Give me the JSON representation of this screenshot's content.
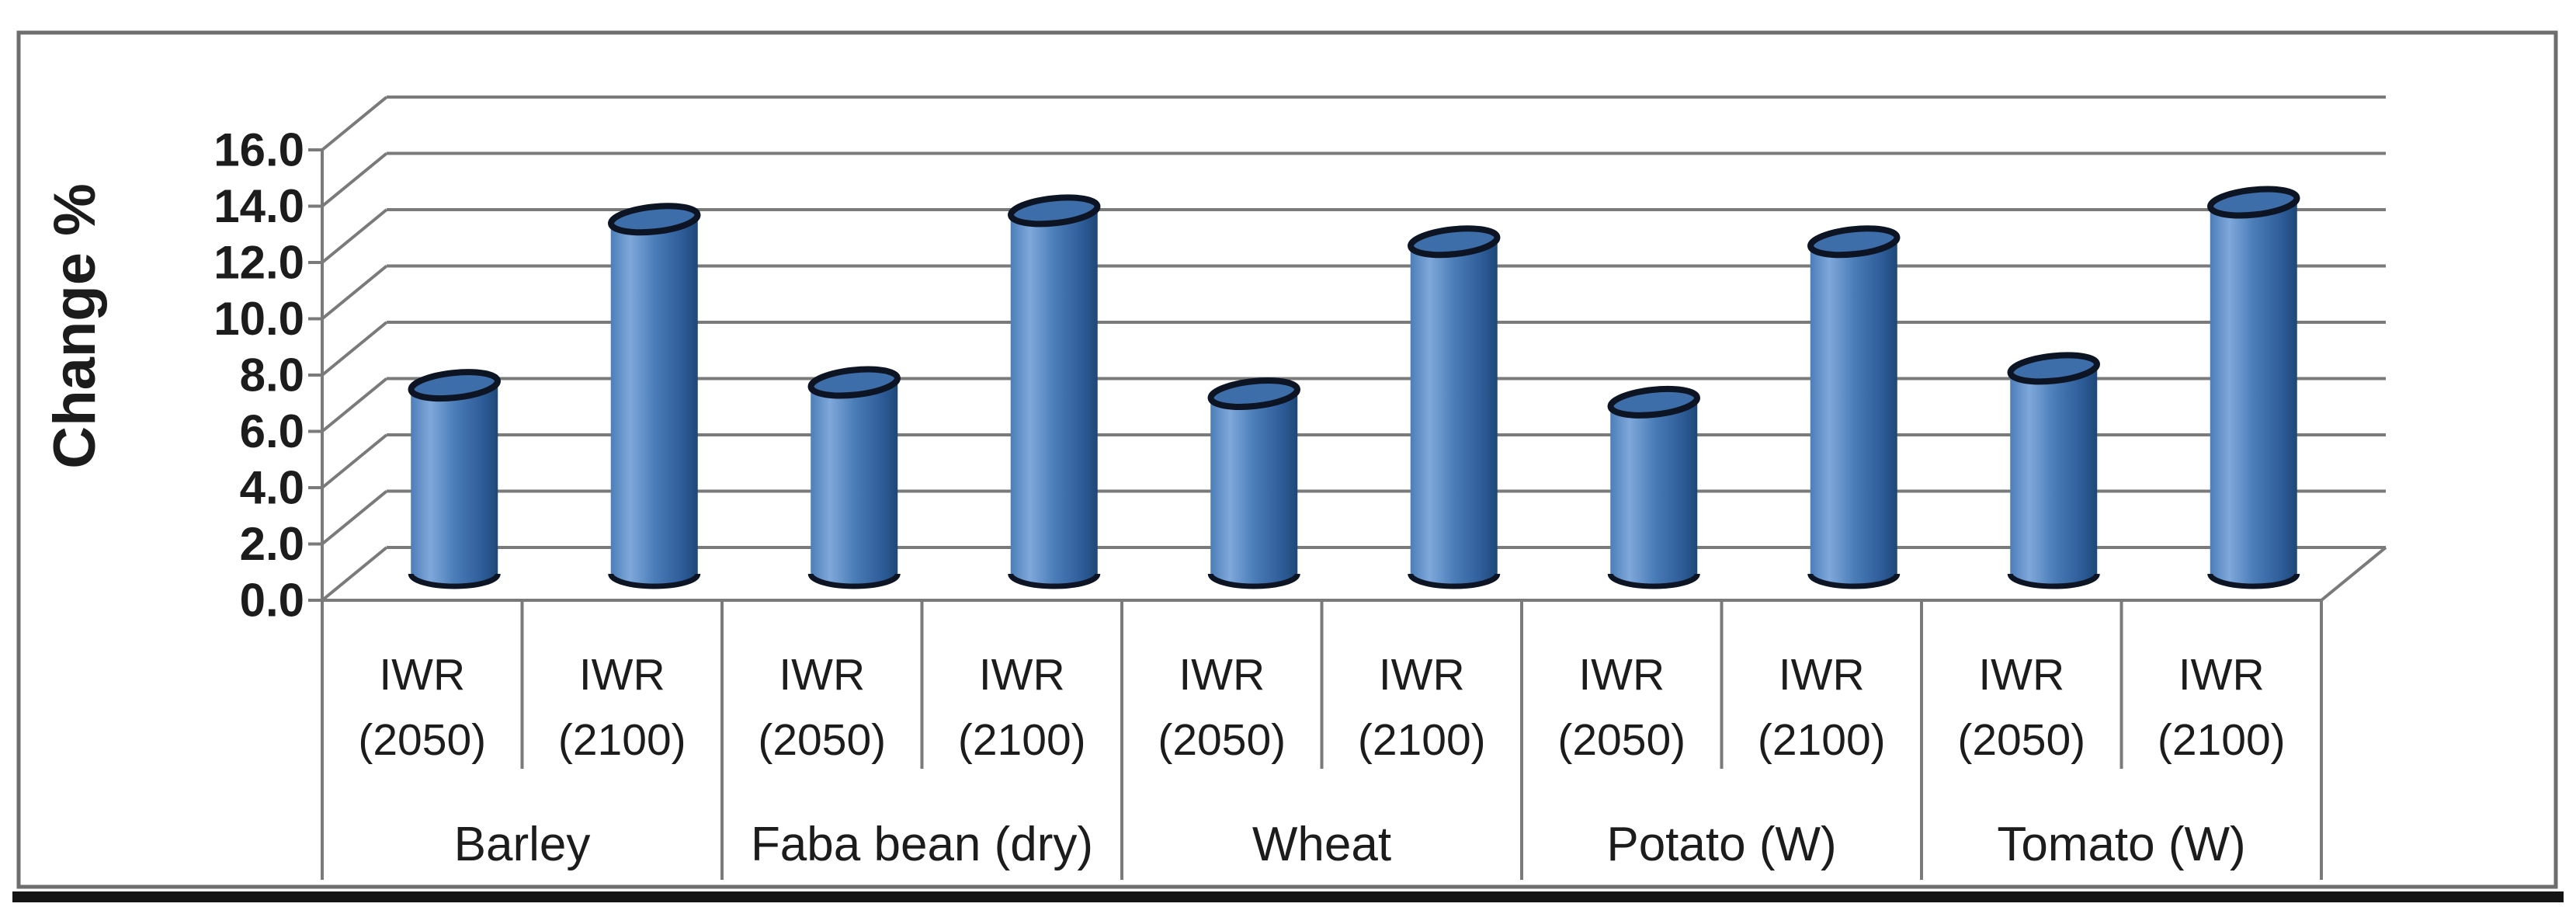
{
  "figure": {
    "background": "#ffffff",
    "border_color": "#6e6e6e",
    "bottom_bar_color": "#141414"
  },
  "chart_data": {
    "type": "bar",
    "style": "3d-cylinder",
    "title": "",
    "ylabel": "Change %",
    "xlabel": "",
    "ylim": [
      0,
      16
    ],
    "ytick_step": 2,
    "ytick_labels": [
      "0.0",
      "2.0",
      "4.0",
      "6.0",
      "8.0",
      "10.0",
      "12.0",
      "14.0",
      "16.0"
    ],
    "grid": true,
    "legend_position": "none",
    "categories": [
      "Barley",
      "Faba bean (dry)",
      "Wheat",
      "Potato (W)",
      "Tomato (W)"
    ],
    "series": [
      {
        "name": "IWR (2050)",
        "values": [
          6.7,
          6.8,
          6.4,
          6.1,
          7.3
        ]
      },
      {
        "name": "IWR (2100)",
        "values": [
          12.6,
          12.9,
          11.8,
          11.8,
          13.2
        ]
      }
    ],
    "groups": [
      {
        "label": "Barley",
        "bars": [
          {
            "label": "IWR (2050)",
            "value": 6.7
          },
          {
            "label": "IWR (2100)",
            "value": 12.6
          }
        ]
      },
      {
        "label": "Faba bean (dry)",
        "bars": [
          {
            "label": "IWR (2050)",
            "value": 6.8
          },
          {
            "label": "IWR (2100)",
            "value": 12.9
          }
        ]
      },
      {
        "label": "Wheat",
        "bars": [
          {
            "label": "IWR (2050)",
            "value": 6.4
          },
          {
            "label": "IWR (2100)",
            "value": 11.8
          }
        ]
      },
      {
        "label": "Potato (W)",
        "bars": [
          {
            "label": "IWR (2050)",
            "value": 6.1
          },
          {
            "label": "IWR (2100)",
            "value": 11.8
          }
        ]
      },
      {
        "label": "Tomato (W)",
        "bars": [
          {
            "label": "IWR (2050)",
            "value": 7.3
          },
          {
            "label": "IWR (2100)",
            "value": 13.2
          }
        ]
      }
    ]
  },
  "colors": {
    "gridline": "#7a7a7a",
    "axis_text": "#1c1c1c",
    "cylinder_gradient": [
      "#4c7eb9",
      "#7fa8db",
      "#4b7db8",
      "#2e5c98",
      "#1d4877"
    ],
    "cylinder_top": "#3d6ea9",
    "cylinder_rim": "#0d1524"
  }
}
